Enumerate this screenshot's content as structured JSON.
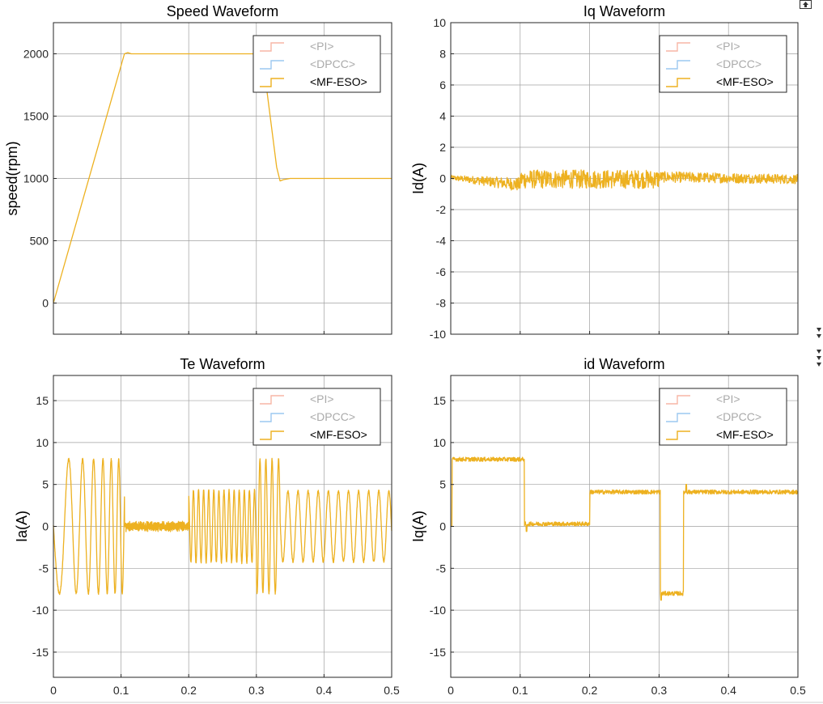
{
  "chart_data": [
    {
      "id": "speed",
      "type": "line",
      "title": "Speed Waveform",
      "xlabel": "",
      "ylabel": "speed(rpm)",
      "xlim": [
        0,
        0.5
      ],
      "ylim": [
        -250,
        2250
      ],
      "xticks": [
        0,
        0.1,
        0.2,
        0.3,
        0.4,
        0.5
      ],
      "yticks": [
        0,
        500,
        1000,
        1500,
        2000
      ],
      "show_xticklabels": false,
      "grid": true,
      "legend": [
        "<PI>",
        "<DPCC>",
        "<MF-ESO>"
      ],
      "legend_position": "top-right",
      "series": [
        {
          "name": "<MF-ESO>",
          "x": [
            0,
            0.105,
            0.11,
            0.115,
            0.13,
            0.3,
            0.31,
            0.33,
            0.335,
            0.34,
            0.35,
            0.5
          ],
          "y": [
            0,
            2000,
            2010,
            2000,
            2000,
            2000,
            1940,
            1090,
            980,
            990,
            1000,
            1000
          ]
        }
      ]
    },
    {
      "id": "iq",
      "type": "line",
      "title": "Iq Waveform",
      "xlabel": "",
      "ylabel": "Id(A)",
      "xlim": [
        0,
        0.5
      ],
      "ylim": [
        -10,
        10
      ],
      "xticks": [
        0,
        0.1,
        0.2,
        0.3,
        0.4,
        0.5
      ],
      "yticks": [
        -10,
        -8,
        -6,
        -4,
        -2,
        0,
        2,
        4,
        6,
        8,
        10
      ],
      "show_xticklabels": false,
      "grid": true,
      "legend": [
        "<PI>",
        "<DPCC>",
        "<MF-ESO>"
      ],
      "legend_position": "top-right",
      "series": [
        {
          "name": "<MF-ESO>",
          "model": "id_noise",
          "points": 900,
          "segments": [
            {
              "from": 0,
              "to": 0.1,
              "offset_start": 0.05,
              "offset_end": -0.4,
              "amp_start": 0.15,
              "amp_end": 0.45
            },
            {
              "from": 0.1,
              "to": 0.3,
              "offset_start": -0.05,
              "offset_end": -0.05,
              "amp_start": 0.6,
              "amp_end": 0.6
            },
            {
              "from": 0.3,
              "to": 0.5,
              "offset_start": 0.1,
              "offset_end": -0.05,
              "amp_start": 0.35,
              "amp_end": 0.3
            }
          ]
        }
      ]
    },
    {
      "id": "te",
      "type": "line",
      "title": "Te Waveform",
      "xlabel": "",
      "ylabel": "Ia(A)",
      "xlim": [
        0,
        0.5
      ],
      "ylim": [
        -18,
        18
      ],
      "xticks": [
        0,
        0.1,
        0.2,
        0.3,
        0.4,
        0.5
      ],
      "xticklabels": [
        "0",
        "0.1",
        "0.2",
        "0.3",
        "0.4",
        "0.5"
      ],
      "yticks": [
        -15,
        -10,
        -5,
        0,
        5,
        10,
        15
      ],
      "show_xticklabels": true,
      "grid": true,
      "legend": [
        "<PI>",
        "<DPCC>",
        "<MF-ESO>"
      ],
      "legend_position": "top-right",
      "series": [
        {
          "name": "<MF-ESO>",
          "model": "phase_current",
          "points": 2600,
          "segments": [
            {
              "from": 0,
              "to": 0.105,
              "amp": 8.0,
              "f_start": 25,
              "f_end": 100
            },
            {
              "from": 0.105,
              "to": 0.2,
              "amp": 0.5,
              "f_start": 150,
              "f_end": 150
            },
            {
              "from": 0.2,
              "to": 0.3,
              "amp": 4.3,
              "f_start": 133,
              "f_end": 133
            },
            {
              "from": 0.3,
              "to": 0.335,
              "amp": 8.0,
              "f_start": 120,
              "f_end": 100
            },
            {
              "from": 0.335,
              "to": 0.5,
              "amp": 4.2,
              "f_start": 67,
              "f_end": 67
            }
          ]
        }
      ]
    },
    {
      "id": "id",
      "type": "line",
      "title": "id Waveform",
      "xlabel": "",
      "ylabel": "Iq(A)",
      "xlim": [
        0,
        0.5
      ],
      "ylim": [
        -18,
        18
      ],
      "xticks": [
        0,
        0.1,
        0.2,
        0.3,
        0.4,
        0.5
      ],
      "xticklabels": [
        "0",
        "0.1",
        "0.2",
        "0.3",
        "0.4",
        "0.5"
      ],
      "yticks": [
        -15,
        -10,
        -5,
        0,
        5,
        10,
        15
      ],
      "show_xticklabels": true,
      "grid": true,
      "legend": [
        "<PI>",
        "<DPCC>",
        "<MF-ESO>"
      ],
      "legend_position": "top-right",
      "series": [
        {
          "name": "<MF-ESO>",
          "model": "step_noise",
          "points": 1200,
          "noise": 0.25,
          "steps": [
            {
              "from": 0,
              "to": 0.002,
              "value": 0
            },
            {
              "from": 0.002,
              "to": 0.106,
              "value": 8.0
            },
            {
              "from": 0.106,
              "to": 0.2,
              "value": 0.3
            },
            {
              "from": 0.2,
              "to": 0.302,
              "value": 4.1
            },
            {
              "from": 0.302,
              "to": 0.335,
              "value": -8.0
            },
            {
              "from": 0.335,
              "to": 0.5,
              "value": 4.1
            }
          ],
          "spikes": [
            {
              "x": 0.109,
              "y": -0.6
            },
            {
              "x": 0.303,
              "y": -8.8
            },
            {
              "x": 0.339,
              "y": 5.0
            }
          ]
        }
      ]
    }
  ],
  "colors": {
    "pi": "#f7b6a6",
    "dpcc": "#9cc8f0",
    "mf_eso": "#edb120",
    "grid": "#a0a0a0",
    "axis": "#262626",
    "legend_inactive_text": "#aaaaaa",
    "legend_active_text": "#000000"
  },
  "toolbar": {
    "icon": "expand-icon",
    "side_arrows_icon": "triangle-down-icon"
  }
}
